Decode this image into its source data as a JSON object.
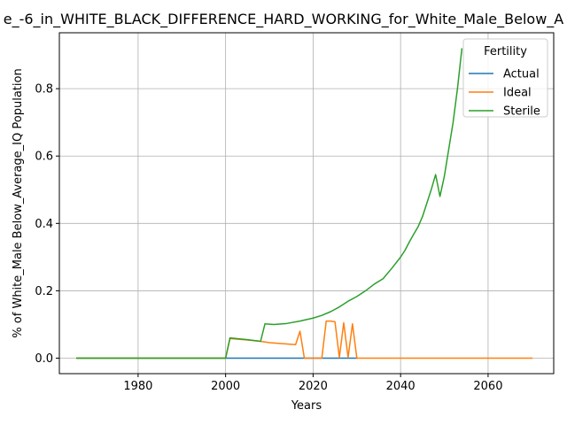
{
  "chart_data": {
    "type": "line",
    "title": "e_-6_in_WHITE_BLACK_DIFFERENCE_HARD_WORKING_for_White_Male_Below_A",
    "xlabel": "Years",
    "ylabel": "% of White_Male Below_Average_IQ Population",
    "xlim": [
      1962,
      2075
    ],
    "ylim": [
      -0.046,
      0.966
    ],
    "x_ticks": [
      1980,
      2000,
      2020,
      2040,
      2060
    ],
    "x_tick_labels": [
      "1980",
      "2000",
      "2020",
      "2040",
      "2060"
    ],
    "y_ticks": [
      0.0,
      0.2,
      0.4,
      0.6,
      0.8
    ],
    "y_tick_labels": [
      "0.0",
      "0.2",
      "0.4",
      "0.6",
      "0.8"
    ],
    "grid": true,
    "legend": {
      "title": "Fertility",
      "placement": "top-right",
      "entries": [
        "Actual",
        "Ideal",
        "Sterile"
      ]
    },
    "series": [
      {
        "name": "Actual",
        "color": "#1f77b4",
        "points": [
          [
            1966,
            0.0
          ],
          [
            2000,
            0.0
          ],
          [
            2010,
            0.0
          ],
          [
            2020,
            0.0
          ],
          [
            2030,
            0.0
          ]
        ]
      },
      {
        "name": "Ideal",
        "color": "#ff7f0e",
        "points": [
          [
            1966,
            0.0
          ],
          [
            2000,
            0.0
          ],
          [
            2001,
            0.058
          ],
          [
            2005,
            0.054
          ],
          [
            2008,
            0.05
          ],
          [
            2010,
            0.046
          ],
          [
            2012,
            0.044
          ],
          [
            2014,
            0.042
          ],
          [
            2016,
            0.04
          ],
          [
            2017,
            0.08
          ],
          [
            2018,
            0.0
          ],
          [
            2022,
            0.0
          ],
          [
            2023,
            0.11
          ],
          [
            2024,
            0.11
          ],
          [
            2025,
            0.108
          ],
          [
            2026,
            0.002
          ],
          [
            2027,
            0.105
          ],
          [
            2028,
            0.002
          ],
          [
            2029,
            0.102
          ],
          [
            2030,
            0.0
          ],
          [
            2070,
            0.0
          ]
        ]
      },
      {
        "name": "Sterile",
        "color": "#2ca02c",
        "points": [
          [
            1966,
            0.0
          ],
          [
            2000,
            0.0
          ],
          [
            2001,
            0.06
          ],
          [
            2005,
            0.055
          ],
          [
            2008,
            0.05
          ],
          [
            2009,
            0.102
          ],
          [
            2011,
            0.1
          ],
          [
            2014,
            0.103
          ],
          [
            2017,
            0.11
          ],
          [
            2020,
            0.119
          ],
          [
            2022,
            0.127
          ],
          [
            2024,
            0.138
          ],
          [
            2026,
            0.152
          ],
          [
            2028,
            0.169
          ],
          [
            2030,
            0.183
          ],
          [
            2032,
            0.2
          ],
          [
            2034,
            0.22
          ],
          [
            2036,
            0.236
          ],
          [
            2038,
            0.267
          ],
          [
            2040,
            0.3
          ],
          [
            2041,
            0.32
          ],
          [
            2042,
            0.345
          ],
          [
            2043,
            0.368
          ],
          [
            2044,
            0.39
          ],
          [
            2045,
            0.42
          ],
          [
            2046,
            0.46
          ],
          [
            2047,
            0.5
          ],
          [
            2048,
            0.545
          ],
          [
            2049,
            0.48
          ],
          [
            2050,
            0.54
          ],
          [
            2051,
            0.62
          ],
          [
            2052,
            0.7
          ],
          [
            2053,
            0.8
          ],
          [
            2054,
            0.918
          ]
        ]
      }
    ]
  }
}
